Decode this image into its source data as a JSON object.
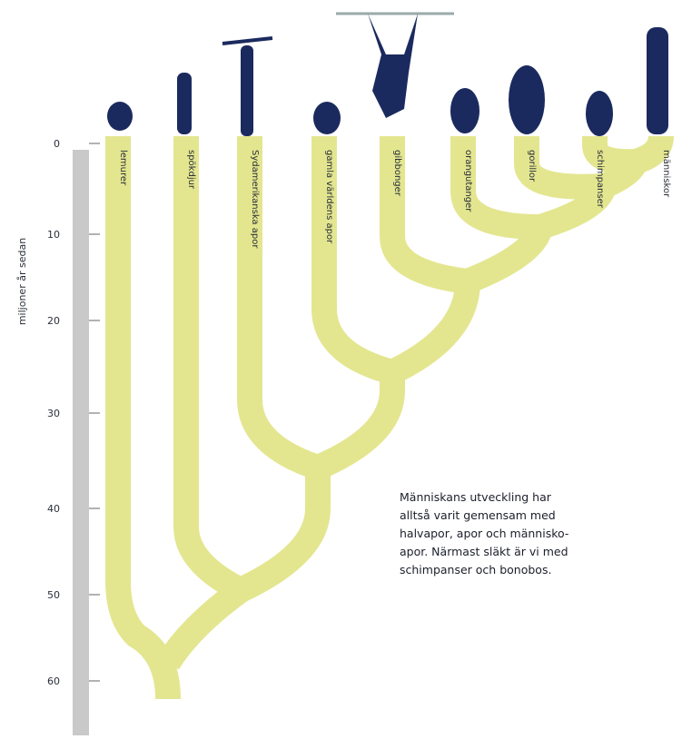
{
  "axis": {
    "title": "miljoner år sedan",
    "ticks": [
      "0",
      "10",
      "20",
      "30",
      "40",
      "50",
      "60"
    ]
  },
  "taxa": [
    "lemurer",
    "spökdjur",
    "Sydamerikanska apor",
    "gamla världens apor",
    "gibbonger",
    "orangutanger",
    "gorillor",
    "schimpanser",
    "människor"
  ],
  "caption": [
    "Människans utveckling har",
    "alltså varit gemensam med",
    "halvapor, apor och människo-",
    "apor. Närmast släkt är vi med",
    "schimpanser och bonobos."
  ]
}
